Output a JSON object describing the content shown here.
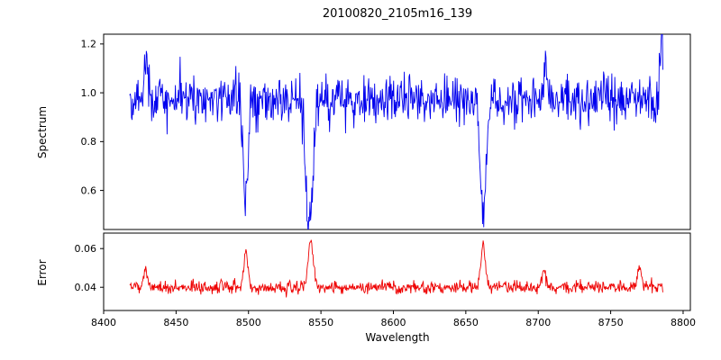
{
  "chart_data": {
    "type": "line",
    "title": "20100820_2105m16_139",
    "xlabel": "Wavelength",
    "grid": false,
    "legend": "none",
    "xlim": [
      8400,
      8805
    ],
    "x_start": 8418,
    "x_end": 8786,
    "n_points": 900,
    "noise_seed": 42,
    "xticks": [
      8400,
      8450,
      8500,
      8550,
      8600,
      8650,
      8700,
      8750,
      8800
    ],
    "xticklabels": [
      "8400",
      "8450",
      "8500",
      "8550",
      "8600",
      "8650",
      "8700",
      "8750",
      "8800"
    ],
    "panels": [
      {
        "name": "spectrum",
        "ylabel": "Spectrum",
        "ylim": [
          0.44,
          1.24
        ],
        "yticks": [
          0.6,
          0.8,
          1.0,
          1.2
        ],
        "yticklabels": [
          "0.6",
          "0.8",
          "1.0",
          "1.2"
        ],
        "line_color": "#0000ee",
        "series": {
          "baseline": 0.97,
          "noise_std": 0.05,
          "absorption_lines": [
            {
              "center": 8498,
              "depth": 0.4,
              "width": 2.2
            },
            {
              "center": 8542,
              "depth": 0.52,
              "width": 3.2
            },
            {
              "center": 8662,
              "depth": 0.5,
              "width": 2.8
            }
          ],
          "emission_spikes": [
            {
              "center": 8429,
              "height": 0.2,
              "width": 1.5
            },
            {
              "center": 8705,
              "height": 0.17,
              "width": 1.2
            },
            {
              "center": 8785,
              "height": 0.25,
              "width": 1.5
            }
          ]
        }
      },
      {
        "name": "error",
        "ylabel": "Error",
        "ylim": [
          0.028,
          0.068
        ],
        "yticks": [
          0.04,
          0.06
        ],
        "yticklabels": [
          "0.04",
          "0.06"
        ],
        "line_color": "#ee0000",
        "series": {
          "baseline": 0.04,
          "noise_std": 0.0016,
          "absorption_lines": [],
          "emission_spikes": [
            {
              "center": 8429,
              "height": 0.01,
              "width": 2.0
            },
            {
              "center": 8498,
              "height": 0.019,
              "width": 2.0
            },
            {
              "center": 8543,
              "height": 0.024,
              "width": 2.5
            },
            {
              "center": 8662,
              "height": 0.021,
              "width": 2.2
            },
            {
              "center": 8704,
              "height": 0.008,
              "width": 2.0
            },
            {
              "center": 8770,
              "height": 0.01,
              "width": 2.0
            }
          ]
        }
      }
    ]
  },
  "layout_hints": {
    "axes_edge_color": "#000000",
    "background_color": "#ffffff"
  }
}
